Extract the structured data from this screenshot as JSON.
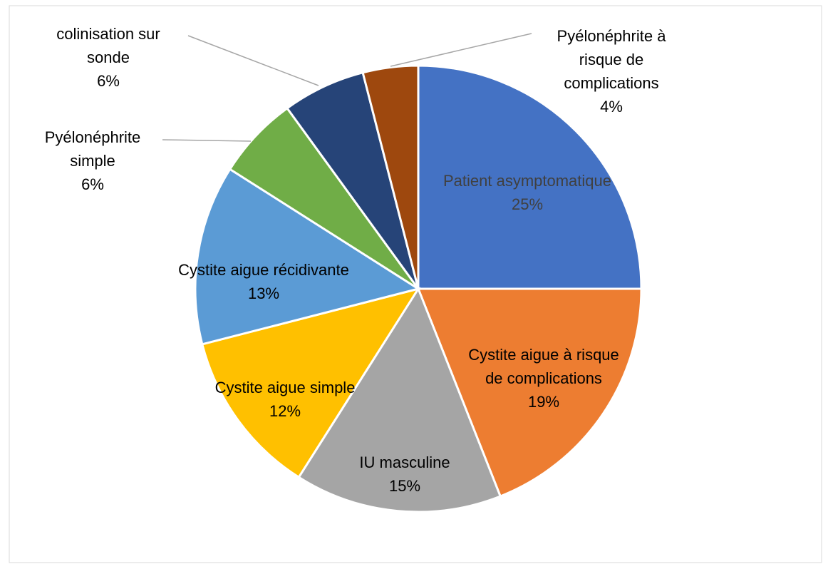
{
  "chart_data": {
    "type": "pie",
    "categories": [
      "Patient asymptomatique",
      "Cystite aigue à risque de complications",
      "IU masculine",
      "Cystite aigue simple",
      "Cystite aigue récidivante",
      "Pyélonéphrite simple",
      "colinisation sur sonde",
      "Pyélonéphrite à risque de complications"
    ],
    "values": [
      25,
      19,
      15,
      12,
      13,
      6,
      6,
      4
    ],
    "value_labels": [
      "25%",
      "19%",
      "15%",
      "12%",
      "13%",
      "6%",
      "6%",
      "4%"
    ],
    "colors": [
      "#4472c4",
      "#ed7d31",
      "#a5a5a5",
      "#ffc000",
      "#5b9bd5",
      "#70ad47",
      "#264478",
      "#9e480e"
    ]
  }
}
